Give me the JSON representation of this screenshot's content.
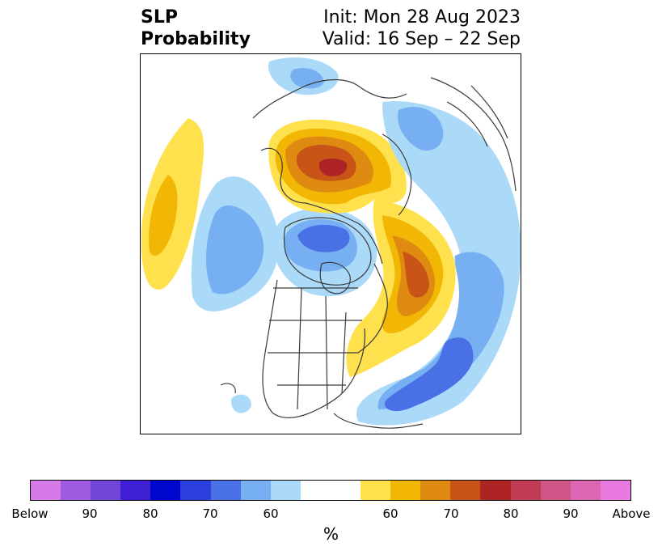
{
  "title": {
    "left_line1": "SLP",
    "left_line2": "Probability",
    "right_line1": "Init: Mon 28 Aug 2023",
    "right_line2": "Valid: 16 Sep – 22 Sep"
  },
  "colorbar": {
    "label": "%",
    "colors": [
      "#d67ae8",
      "#9f5be0",
      "#7245d8",
      "#3f1fd3",
      "#0008d0",
      "#2a3fdc",
      "#4a70e6",
      "#76b0f2",
      "#abdaf9",
      "#ffffff",
      "#ffffff",
      "#ffe14d",
      "#f2b705",
      "#df8a10",
      "#c85418",
      "#ae2424",
      "#c23b55",
      "#cf5587",
      "#dd66b3",
      "#e87ae0"
    ],
    "tick_labels": [
      "Below",
      "90",
      "80",
      "70",
      "60",
      "60",
      "70",
      "80",
      "90",
      "Above"
    ]
  },
  "map": {
    "projection": "north-polar-stereographic",
    "colors": {
      "below_light": "#abdaf9",
      "below_mid": "#76b0f2",
      "below_strong": "#4a70e6",
      "above_light": "#ffe14d",
      "above_mid": "#f2b705",
      "above_strong": "#df8a10",
      "above_stronger": "#c85418",
      "above_max": "#ae2424",
      "coastline": "#3a3a3a"
    }
  }
}
